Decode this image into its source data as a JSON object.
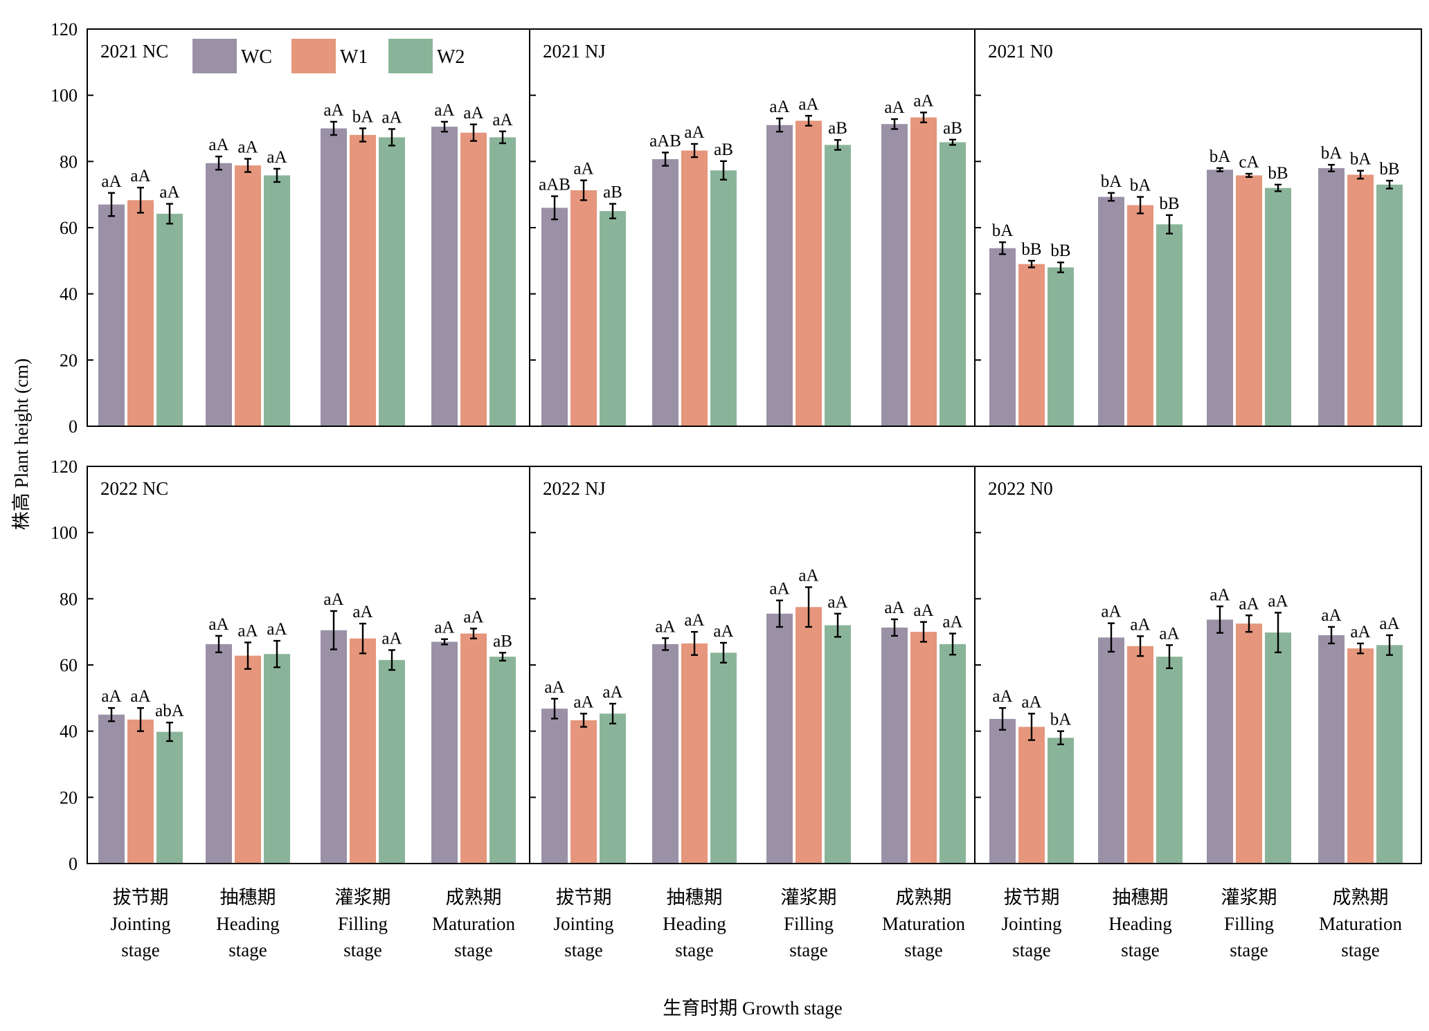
{
  "chart_data": {
    "type": "bar",
    "ylabel": "株高 Plant height (cm)",
    "xlabel": "生育时期 Growth stage",
    "ylim": [
      0,
      120
    ],
    "yticks": [
      0,
      20,
      40,
      60,
      80,
      100,
      120
    ],
    "categories": [
      {
        "zh": "拔节期",
        "en1": "Jointing",
        "en2": "stage"
      },
      {
        "zh": "抽穗期",
        "en1": "Heading",
        "en2": "stage"
      },
      {
        "zh": "灌浆期",
        "en1": "Filling",
        "en2": "stage"
      },
      {
        "zh": "成熟期",
        "en1": "Maturation",
        "en2": "stage"
      }
    ],
    "series_names": [
      "WC",
      "W1",
      "W2"
    ],
    "series_colors": [
      "#9a91a7",
      "#e5967c",
      "#8ab499"
    ],
    "legend_position": "top-left panel",
    "panels": [
      {
        "title": "2021 NC",
        "values": [
          [
            67.0,
            68.3,
            64.2
          ],
          [
            79.5,
            78.8,
            75.8
          ],
          [
            90.0,
            88.0,
            87.3
          ],
          [
            90.5,
            88.7,
            87.3
          ]
        ],
        "errors": [
          [
            3.5,
            3.8,
            3.0
          ],
          [
            2.0,
            2.0,
            2.0
          ],
          [
            2.0,
            2.0,
            2.5
          ],
          [
            1.5,
            2.5,
            1.8
          ]
        ],
        "letters": [
          [
            "aA",
            "aA",
            "aA"
          ],
          [
            "aA",
            "aA",
            "aA"
          ],
          [
            "aA",
            "bA",
            "aA"
          ],
          [
            "aA",
            "aA",
            "aA"
          ]
        ]
      },
      {
        "title": "2021 NJ",
        "values": [
          [
            66.0,
            71.3,
            65.0
          ],
          [
            80.7,
            83.3,
            77.3
          ],
          [
            91.0,
            92.3,
            85.0
          ],
          [
            91.3,
            93.3,
            85.8
          ]
        ],
        "errors": [
          [
            3.5,
            3.0,
            2.2
          ],
          [
            2.0,
            2.0,
            2.8
          ],
          [
            2.0,
            1.5,
            1.5
          ],
          [
            1.5,
            1.5,
            0.8
          ]
        ],
        "letters": [
          [
            "aAB",
            "aA",
            "aB"
          ],
          [
            "aAB",
            "aA",
            "aB"
          ],
          [
            "aA",
            "aA",
            "aB"
          ],
          [
            "aA",
            "aA",
            "aB"
          ]
        ]
      },
      {
        "title": "2021 N0",
        "values": [
          [
            53.8,
            49.0,
            48.0
          ],
          [
            69.3,
            66.8,
            61.0
          ],
          [
            77.5,
            75.8,
            72.0
          ],
          [
            78.0,
            76.0,
            73.0
          ]
        ],
        "errors": [
          [
            1.8,
            1.0,
            1.5
          ],
          [
            1.2,
            2.5,
            2.8
          ],
          [
            0.5,
            0.5,
            1.0
          ],
          [
            1.0,
            1.2,
            1.2
          ]
        ],
        "letters": [
          [
            "bA",
            "bB",
            "bB"
          ],
          [
            "bA",
            "bA",
            "bB"
          ],
          [
            "bA",
            "cA",
            "bB"
          ],
          [
            "bA",
            "bA",
            "bB"
          ]
        ]
      },
      {
        "title": "2022 NC",
        "values": [
          [
            45.0,
            43.5,
            39.8
          ],
          [
            66.3,
            62.8,
            63.3
          ],
          [
            70.5,
            68.0,
            61.5
          ],
          [
            67.0,
            69.5,
            62.5
          ]
        ],
        "errors": [
          [
            2.0,
            3.5,
            2.8
          ],
          [
            2.5,
            4.0,
            4.0
          ],
          [
            5.8,
            4.5,
            3.0
          ],
          [
            0.8,
            1.5,
            1.2
          ]
        ],
        "letters": [
          [
            "aA",
            "aA",
            "abA"
          ],
          [
            "aA",
            "aA",
            "aA"
          ],
          [
            "aA",
            "aA",
            "aA"
          ],
          [
            "aA",
            "aA",
            "aB"
          ]
        ]
      },
      {
        "title": "2022 NJ",
        "values": [
          [
            46.8,
            43.3,
            45.3
          ],
          [
            66.3,
            66.5,
            63.7
          ],
          [
            75.5,
            77.5,
            72.0
          ],
          [
            71.3,
            70.0,
            66.3
          ]
        ],
        "errors": [
          [
            3.0,
            2.0,
            3.0
          ],
          [
            1.8,
            3.5,
            3.0
          ],
          [
            4.0,
            6.0,
            3.5
          ],
          [
            2.5,
            3.0,
            3.2
          ]
        ],
        "letters": [
          [
            "aA",
            "aA",
            "aA"
          ],
          [
            "aA",
            "aA",
            "aA"
          ],
          [
            "aA",
            "aA",
            "aA"
          ],
          [
            "aA",
            "aA",
            "aA"
          ]
        ]
      },
      {
        "title": "2022 N0",
        "values": [
          [
            43.7,
            41.3,
            38.0
          ],
          [
            68.3,
            65.7,
            62.5
          ],
          [
            73.7,
            72.5,
            69.8
          ],
          [
            69.0,
            65.0,
            66.0
          ]
        ],
        "errors": [
          [
            3.3,
            4.0,
            2.0
          ],
          [
            4.3,
            3.0,
            3.5
          ],
          [
            4.0,
            2.5,
            6.0
          ],
          [
            2.5,
            1.5,
            3.0
          ]
        ],
        "letters": [
          [
            "aA",
            "aA",
            "bA"
          ],
          [
            "aA",
            "aA",
            "aA"
          ],
          [
            "aA",
            "aA",
            "aA"
          ],
          [
            "aA",
            "aA",
            "aA"
          ]
        ]
      }
    ]
  }
}
